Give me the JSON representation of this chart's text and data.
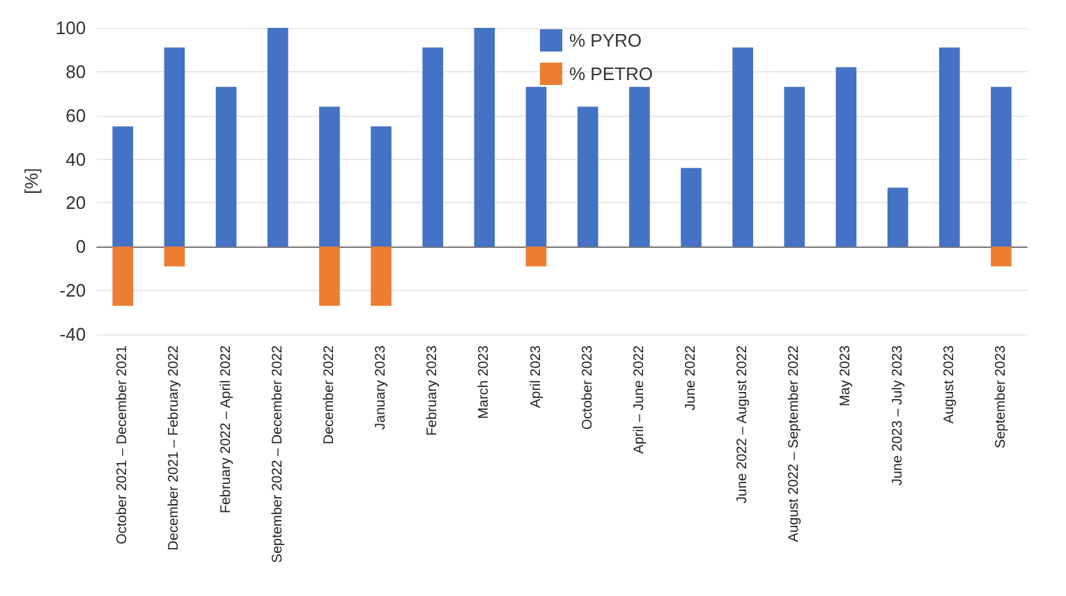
{
  "chart_data": {
    "type": "bar",
    "ylabel": "[%]",
    "categories": [
      "October 2021 – December 2021",
      "December 2021 – February 2022",
      "February 2022 – April 2022",
      "September 2022 – December 2022",
      "December 2022",
      "January 2023",
      "February 2023",
      "March 2023",
      "April 2023",
      "October 2023",
      "April – June 2022",
      "June 2022",
      "June 2022 – August 2022",
      "August 2022 – September 2022",
      "May 2023",
      "June 2023 – July 2023",
      "August 2023",
      "September 2023"
    ],
    "series": [
      {
        "name": "% PYRO",
        "color": "#4472c4",
        "values": [
          55,
          91,
          73,
          100,
          64,
          55,
          91,
          100,
          73,
          64,
          73,
          36,
          91,
          73,
          82,
          27,
          91,
          73
        ]
      },
      {
        "name": "% PETRO",
        "color": "#ed7d31",
        "values": [
          -27,
          -9,
          null,
          null,
          -27,
          -27,
          null,
          null,
          -9,
          null,
          null,
          null,
          null,
          null,
          null,
          null,
          null,
          -9
        ]
      }
    ],
    "stacked": true,
    "ylim": [
      -40,
      100
    ],
    "yticks": [
      -40,
      -20,
      0,
      20,
      40,
      60,
      80,
      100
    ],
    "grid": "y",
    "legend": "top"
  }
}
